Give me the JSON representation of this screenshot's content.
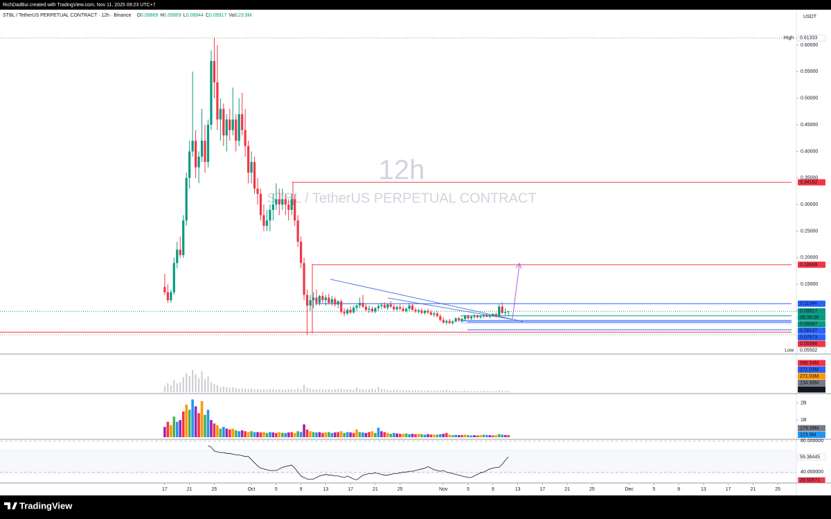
{
  "header": {
    "credit": "RichDadBui created with TradingView.com, Nov 11, 2025 09:23 UTC+7"
  },
  "chart_data": {
    "type": "candlestick",
    "title": "STBL / TetherUS PERPETUAL CONTRACT · 12h · Binance",
    "ohlc_keys": [
      "O",
      "H",
      "L",
      "C"
    ],
    "volume_legend": {
      "key": "Vol",
      "value": 123900000,
      "label": "123.9M"
    },
    "watermark": {
      "interval": "12h",
      "symbol": "STBL / TetherUS PERPETUAL CONTRACT"
    },
    "currency": "USDT",
    "up_color": "#089981",
    "down_color": "#f23645",
    "xlim": [
      -53.2,
      204
    ],
    "xticks": [
      {
        "value": 0,
        "label": "17"
      },
      {
        "value": 8,
        "label": "21"
      },
      {
        "value": 16,
        "label": "25"
      },
      {
        "value": 28,
        "label": "Oct"
      },
      {
        "value": 36,
        "label": "5"
      },
      {
        "value": 44,
        "label": "9"
      },
      {
        "value": 52,
        "label": "13"
      },
      {
        "value": 60,
        "label": "17"
      },
      {
        "value": 68,
        "label": "21"
      },
      {
        "value": 76,
        "label": "25"
      },
      {
        "value": 90,
        "label": "Nov"
      },
      {
        "value": 98,
        "label": "5"
      },
      {
        "value": 106,
        "label": "9"
      },
      {
        "value": 114,
        "label": "13"
      },
      {
        "value": 122,
        "label": "17"
      },
      {
        "value": 130,
        "label": "21"
      },
      {
        "value": 138,
        "label": "25"
      },
      {
        "value": 150,
        "label": "Dec"
      },
      {
        "value": 158,
        "label": "5"
      },
      {
        "value": 166,
        "label": "9"
      },
      {
        "value": 174,
        "label": "13"
      },
      {
        "value": 182,
        "label": "17"
      },
      {
        "value": 190,
        "label": "21"
      },
      {
        "value": 198,
        "label": "25"
      }
    ],
    "ylim": [
      0.02,
      0.6665
    ],
    "yticks": [
      {
        "value": 0.1,
        "label": "0.10000"
      },
      {
        "value": 0.15,
        "label": "0.15000"
      },
      {
        "value": 0.2,
        "label": "0.20000"
      },
      {
        "value": 0.25,
        "label": "0.25000"
      },
      {
        "value": 0.3,
        "label": "0.30000"
      },
      {
        "value": 0.35,
        "label": "0.35000"
      },
      {
        "value": 0.4,
        "label": "0.40000"
      },
      {
        "value": 0.45,
        "label": "0.45000"
      },
      {
        "value": 0.5,
        "label": "0.50000"
      },
      {
        "value": 0.55,
        "label": "0.55000"
      },
      {
        "value": 0.6,
        "label": "0.60000"
      }
    ],
    "candles": [
      [
        0.145,
        0.17,
        0.13,
        0.135
      ],
      [
        0.135,
        0.15,
        0.115,
        0.12
      ],
      [
        0.12,
        0.14,
        0.115,
        0.135
      ],
      [
        0.135,
        0.2,
        0.13,
        0.19
      ],
      [
        0.19,
        0.23,
        0.18,
        0.215
      ],
      [
        0.215,
        0.24,
        0.2,
        0.205
      ],
      [
        0.205,
        0.28,
        0.2,
        0.27
      ],
      [
        0.27,
        0.36,
        0.26,
        0.35
      ],
      [
        0.35,
        0.42,
        0.33,
        0.4
      ],
      [
        0.4,
        0.55,
        0.39,
        0.42
      ],
      [
        0.42,
        0.44,
        0.35,
        0.37
      ],
      [
        0.37,
        0.4,
        0.34,
        0.39
      ],
      [
        0.39,
        0.48,
        0.38,
        0.42
      ],
      [
        0.42,
        0.45,
        0.36,
        0.38
      ],
      [
        0.38,
        0.46,
        0.37,
        0.45
      ],
      [
        0.45,
        0.59,
        0.44,
        0.57
      ],
      [
        0.57,
        0.61333,
        0.5,
        0.53
      ],
      [
        0.53,
        0.6,
        0.44,
        0.46
      ],
      [
        0.46,
        0.5,
        0.42,
        0.48
      ],
      [
        0.48,
        0.49,
        0.41,
        0.43
      ],
      [
        0.43,
        0.47,
        0.4,
        0.46
      ],
      [
        0.46,
        0.48,
        0.42,
        0.44
      ],
      [
        0.44,
        0.52,
        0.43,
        0.46
      ],
      [
        0.46,
        0.47,
        0.4,
        0.42
      ],
      [
        0.42,
        0.5,
        0.41,
        0.47
      ],
      [
        0.47,
        0.51,
        0.43,
        0.44
      ],
      [
        0.44,
        0.48,
        0.39,
        0.41
      ],
      [
        0.41,
        0.42,
        0.34,
        0.36
      ],
      [
        0.36,
        0.4,
        0.34,
        0.38
      ],
      [
        0.38,
        0.39,
        0.32,
        0.33
      ],
      [
        0.33,
        0.35,
        0.3,
        0.32
      ],
      [
        0.32,
        0.33,
        0.27,
        0.28
      ],
      [
        0.28,
        0.3,
        0.25,
        0.26
      ],
      [
        0.26,
        0.29,
        0.25,
        0.27
      ],
      [
        0.27,
        0.3,
        0.25,
        0.29
      ],
      [
        0.29,
        0.32,
        0.27,
        0.3
      ],
      [
        0.3,
        0.34,
        0.29,
        0.31
      ],
      [
        0.31,
        0.33,
        0.28,
        0.3
      ],
      [
        0.3,
        0.33,
        0.29,
        0.31
      ],
      [
        0.31,
        0.32,
        0.28,
        0.3
      ],
      [
        0.3,
        0.31,
        0.27,
        0.29
      ],
      [
        0.29,
        0.32,
        0.28,
        0.31
      ],
      [
        0.31,
        0.32,
        0.26,
        0.27
      ],
      [
        0.27,
        0.28,
        0.22,
        0.23
      ],
      [
        0.23,
        0.24,
        0.18,
        0.19
      ],
      [
        0.19,
        0.2,
        0.12,
        0.13
      ],
      [
        0.13,
        0.14,
        0.05502,
        0.11
      ],
      [
        0.11,
        0.13,
        0.1,
        0.12
      ],
      [
        0.12,
        0.135,
        0.105,
        0.125
      ],
      [
        0.125,
        0.14,
        0.11,
        0.115
      ],
      [
        0.115,
        0.13,
        0.11,
        0.128
      ],
      [
        0.128,
        0.135,
        0.115,
        0.12
      ],
      [
        0.12,
        0.13,
        0.11,
        0.125
      ],
      [
        0.125,
        0.132,
        0.112,
        0.115
      ],
      [
        0.115,
        0.128,
        0.11,
        0.122
      ],
      [
        0.122,
        0.126,
        0.108,
        0.112
      ],
      [
        0.112,
        0.12,
        0.105,
        0.118
      ],
      [
        0.118,
        0.122,
        0.095,
        0.098
      ],
      [
        0.098,
        0.105,
        0.09,
        0.095
      ],
      [
        0.095,
        0.105,
        0.092,
        0.102
      ],
      [
        0.102,
        0.108,
        0.094,
        0.097
      ],
      [
        0.097,
        0.11,
        0.095,
        0.106
      ],
      [
        0.106,
        0.112,
        0.1,
        0.11
      ],
      [
        0.11,
        0.125,
        0.105,
        0.115
      ],
      [
        0.115,
        0.13,
        0.105,
        0.108
      ],
      [
        0.108,
        0.112,
        0.098,
        0.102
      ],
      [
        0.102,
        0.11,
        0.096,
        0.104
      ],
      [
        0.104,
        0.108,
        0.096,
        0.099
      ],
      [
        0.099,
        0.107,
        0.095,
        0.105
      ],
      [
        0.105,
        0.112,
        0.1,
        0.109
      ],
      [
        0.109,
        0.115,
        0.103,
        0.111
      ],
      [
        0.111,
        0.116,
        0.104,
        0.106
      ],
      [
        0.106,
        0.114,
        0.102,
        0.112
      ],
      [
        0.112,
        0.118,
        0.105,
        0.108
      ],
      [
        0.108,
        0.112,
        0.1,
        0.103
      ],
      [
        0.103,
        0.11,
        0.099,
        0.107
      ],
      [
        0.107,
        0.112,
        0.101,
        0.104
      ],
      [
        0.104,
        0.109,
        0.098,
        0.1
      ],
      [
        0.1,
        0.106,
        0.097,
        0.104
      ],
      [
        0.104,
        0.115,
        0.1,
        0.11
      ],
      [
        0.11,
        0.114,
        0.1,
        0.102
      ],
      [
        0.102,
        0.106,
        0.096,
        0.099
      ],
      [
        0.099,
        0.104,
        0.095,
        0.101
      ],
      [
        0.101,
        0.105,
        0.094,
        0.096
      ],
      [
        0.096,
        0.102,
        0.093,
        0.1
      ],
      [
        0.1,
        0.104,
        0.094,
        0.097
      ],
      [
        0.097,
        0.101,
        0.091,
        0.093
      ],
      [
        0.093,
        0.098,
        0.089,
        0.095
      ],
      [
        0.095,
        0.099,
        0.088,
        0.09
      ],
      [
        0.09,
        0.094,
        0.08,
        0.083
      ],
      [
        0.083,
        0.088,
        0.076,
        0.078
      ],
      [
        0.078,
        0.084,
        0.074,
        0.081
      ],
      [
        0.081,
        0.085,
        0.075,
        0.077
      ],
      [
        0.077,
        0.083,
        0.074,
        0.08
      ],
      [
        0.08,
        0.088,
        0.078,
        0.086
      ],
      [
        0.086,
        0.089,
        0.079,
        0.082
      ],
      [
        0.082,
        0.087,
        0.078,
        0.085
      ],
      [
        0.085,
        0.092,
        0.082,
        0.09
      ],
      [
        0.09,
        0.093,
        0.084,
        0.086
      ],
      [
        0.086,
        0.091,
        0.083,
        0.089
      ],
      [
        0.089,
        0.094,
        0.085,
        0.091
      ],
      [
        0.091,
        0.093,
        0.086,
        0.088
      ],
      [
        0.088,
        0.092,
        0.085,
        0.09
      ],
      [
        0.09,
        0.094,
        0.087,
        0.092
      ],
      [
        0.092,
        0.095,
        0.088,
        0.089
      ],
      [
        0.089,
        0.093,
        0.086,
        0.091
      ],
      [
        0.091,
        0.096,
        0.089,
        0.094
      ],
      [
        0.094,
        0.097,
        0.088,
        0.09
      ],
      [
        0.09,
        0.112,
        0.089,
        0.108
      ],
      [
        0.108,
        0.116,
        0.094,
        0.096
      ],
      [
        0.096,
        0.105,
        0.09,
        0.098
      ],
      [
        0.09869,
        0.09969,
        0.08944,
        0.09917
      ]
    ],
    "price_labels": [
      {
        "value": 0.61333,
        "color": "#ffffff",
        "tag": "High"
      },
      {
        "value": 0.34182,
        "color": "#f23645"
      },
      {
        "value": 0.18689,
        "color": "#f23645"
      },
      {
        "value": 0.11344,
        "color": "#2962ff"
      },
      {
        "value": 0.09917,
        "color": "#089981"
      },
      {
        "value": 0.09067,
        "color": "#089981"
      },
      {
        "value": 0.08137,
        "color": "#2962ff"
      },
      {
        "value": 0.07873,
        "color": "#2962ff"
      },
      {
        "value": 0.05998,
        "color": "#f23645"
      },
      {
        "value": 0.05502,
        "color": "#ffffff",
        "tag": "Low"
      }
    ],
    "countdown": "09:36:06",
    "volume": {
      "values": [
        600000000.0,
        900000000.0,
        700000000.0,
        1200000000.0,
        900000000.0,
        1000000000.0,
        1500000000.0,
        1900000000.0,
        1600000000.0,
        2200000000.0,
        1800000000.0,
        1400000000.0,
        2100000000.0,
        1300000000.0,
        1600000000.0,
        1000000000.0,
        800000000.0,
        700000000.0,
        500000000.0,
        600000000.0,
        500000000.0,
        450000000.0,
        500000000.0,
        400000000.0,
        350000000.0,
        400000000.0,
        350000000.0,
        300000000.0,
        350000000.0,
        300000000.0,
        300000000.0,
        280000000.0,
        300000000.0,
        250000000.0,
        300000000.0,
        280000000.0,
        250000000.0,
        300000000.0,
        260000000.0,
        250000000.0,
        280000000.0,
        300000000.0,
        250000000.0,
        350000000.0,
        300000000.0,
        750000000.0,
        450000000.0,
        350000000.0,
        300000000.0,
        280000000.0,
        300000000.0,
        250000000.0,
        280000000.0,
        300000000.0,
        250000000.0,
        280000000.0,
        300000000.0,
        350000000.0,
        250000000.0,
        300000000.0,
        280000000.0,
        250000000.0,
        450000000.0,
        300000000.0,
        280000000.0,
        250000000.0,
        300000000.0,
        350000000.0,
        250000000.0,
        550000000.0,
        350000000.0,
        300000000.0,
        250000000.0,
        200000000.0,
        250000000.0,
        220000000.0,
        200000000.0,
        200000000.0,
        220000000.0,
        180000000.0,
        200000000.0,
        180000000.0,
        200000000.0,
        180000000.0,
        150000000.0,
        180000000.0,
        160000000.0,
        150000000.0,
        150000000.0,
        180000000.0,
        200000000.0,
        250000000.0,
        150000000.0,
        120000000.0,
        140000000.0,
        120000000.0,
        130000000.0,
        150000000.0,
        120000000.0,
        100000000.0,
        120000000.0,
        100000000.0,
        120000000.0,
        150000000.0,
        130000000.0,
        120000000.0,
        100000000.0,
        120000000.0,
        180000000.0,
        150000000.0,
        130000000.0,
        123900000.0
      ],
      "pane1_ylim": [
        0,
        3600000000.0
      ],
      "pane2_ylim": [
        0,
        2460000000.0
      ],
      "pane2_yticks": [
        {
          "value": 1000000000.0,
          "label": "1B"
        },
        {
          "value": 2000000000.0,
          "label": "2B"
        }
      ],
      "pane1_labels": [
        {
          "value": 598540000,
          "label": "598.54M",
          "color": "#f23645"
        },
        {
          "value": 271030000,
          "label": "271.03M",
          "color": "#2962ff"
        },
        {
          "value": 271030000,
          "label": "271.03M",
          "color": "#ff9800"
        },
        {
          "value": 134990000,
          "label": "134.99M",
          "color": "#787b86"
        },
        {
          "value": 123900000,
          "label": "123.9M",
          "color": "#131722"
        }
      ],
      "pane2_labels": [
        {
          "value": 179390000,
          "label": "179.39M",
          "color": "#787b86"
        },
        {
          "value": 123900000,
          "label": "123.9M",
          "color": "#2196f3"
        }
      ],
      "colors": [
        "#9c27b0",
        "#f23645",
        "#ff9800",
        "#4caf50",
        "#2196f3"
      ]
    },
    "rsi": {
      "values": [
        null,
        null,
        null,
        null,
        null,
        null,
        null,
        null,
        null,
        null,
        null,
        null,
        null,
        null,
        74,
        72,
        67,
        66,
        65,
        65,
        64,
        64,
        63,
        62,
        62,
        61,
        60,
        60,
        56,
        52,
        48,
        45,
        44,
        43,
        42,
        42,
        42,
        44,
        46,
        47,
        48,
        49,
        45,
        40,
        35,
        33,
        31,
        31,
        31,
        33,
        35,
        36,
        37,
        36,
        36,
        35,
        35,
        34,
        33,
        35,
        33,
        31,
        30,
        33,
        36,
        37,
        38,
        38,
        39,
        38,
        37,
        36,
        36,
        37,
        38,
        38,
        39,
        40,
        40,
        41,
        41,
        42,
        43,
        44,
        45,
        47,
        45,
        43,
        42,
        41,
        42,
        40,
        39,
        38,
        37,
        36,
        35,
        34,
        33,
        33,
        35,
        37,
        39,
        40,
        42,
        44,
        45,
        46,
        46,
        50,
        55,
        59.38445
      ],
      "ylim": [
        26,
        82
      ],
      "yticks": [
        {
          "value": 40,
          "label": "40.000000"
        },
        {
          "value": 80,
          "label": "80.000000"
        }
      ],
      "labels": [
        {
          "value": 59.38445,
          "color": "#131722"
        },
        {
          "value": 29.50571,
          "color": "#f23645"
        }
      ]
    }
  },
  "footer": {
    "brand": "TradingView"
  }
}
